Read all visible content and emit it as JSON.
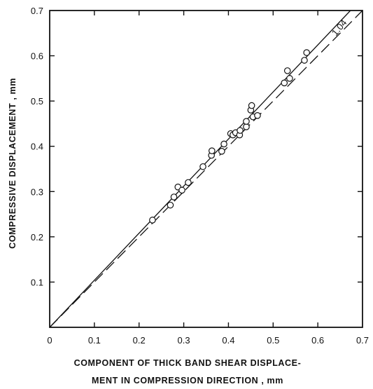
{
  "chart_data": {
    "type": "scatter",
    "title": "",
    "xlabel_lines": [
      "COMPONENT OF THICK BAND SHEAR DISPLACE-",
      "MENT IN COMPRESSION DIRECTION , mm"
    ],
    "ylabel": "COMPRESSIVE  DISPLACEMENT , mm",
    "xlim": [
      0,
      0.7
    ],
    "ylim": [
      0,
      0.7
    ],
    "xticks": [
      "0",
      "0.1",
      "0.2",
      "0.3",
      "0.4",
      "0.5",
      "0.6",
      "0.7"
    ],
    "yticks": [
      "0.1",
      "0.2",
      "0.3",
      "0.4",
      "0.5",
      "0.6",
      "0.7"
    ],
    "grid": false,
    "series": [
      {
        "marker": "open-circle",
        "points": [
          [
            0.23,
            0.237
          ],
          [
            0.27,
            0.27
          ],
          [
            0.278,
            0.288
          ],
          [
            0.287,
            0.31
          ],
          [
            0.296,
            0.303
          ],
          [
            0.31,
            0.32
          ],
          [
            0.343,
            0.355
          ],
          [
            0.362,
            0.38
          ],
          [
            0.363,
            0.39
          ],
          [
            0.385,
            0.389
          ],
          [
            0.39,
            0.405
          ],
          [
            0.405,
            0.428
          ],
          [
            0.41,
            0.425
          ],
          [
            0.416,
            0.43
          ],
          [
            0.425,
            0.425
          ],
          [
            0.426,
            0.435
          ],
          [
            0.44,
            0.443
          ],
          [
            0.44,
            0.455
          ],
          [
            0.45,
            0.48
          ],
          [
            0.452,
            0.49
          ],
          [
            0.455,
            0.465
          ],
          [
            0.465,
            0.468
          ],
          [
            0.525,
            0.54
          ],
          [
            0.532,
            0.567
          ],
          [
            0.537,
            0.55
          ],
          [
            0.57,
            0.59
          ],
          [
            0.575,
            0.607
          ]
        ]
      }
    ],
    "reference_lines": [
      {
        "style": "solid",
        "slope": 1.04,
        "label": "1.04"
      },
      {
        "style": "dashed",
        "slope": 1.0
      }
    ]
  }
}
